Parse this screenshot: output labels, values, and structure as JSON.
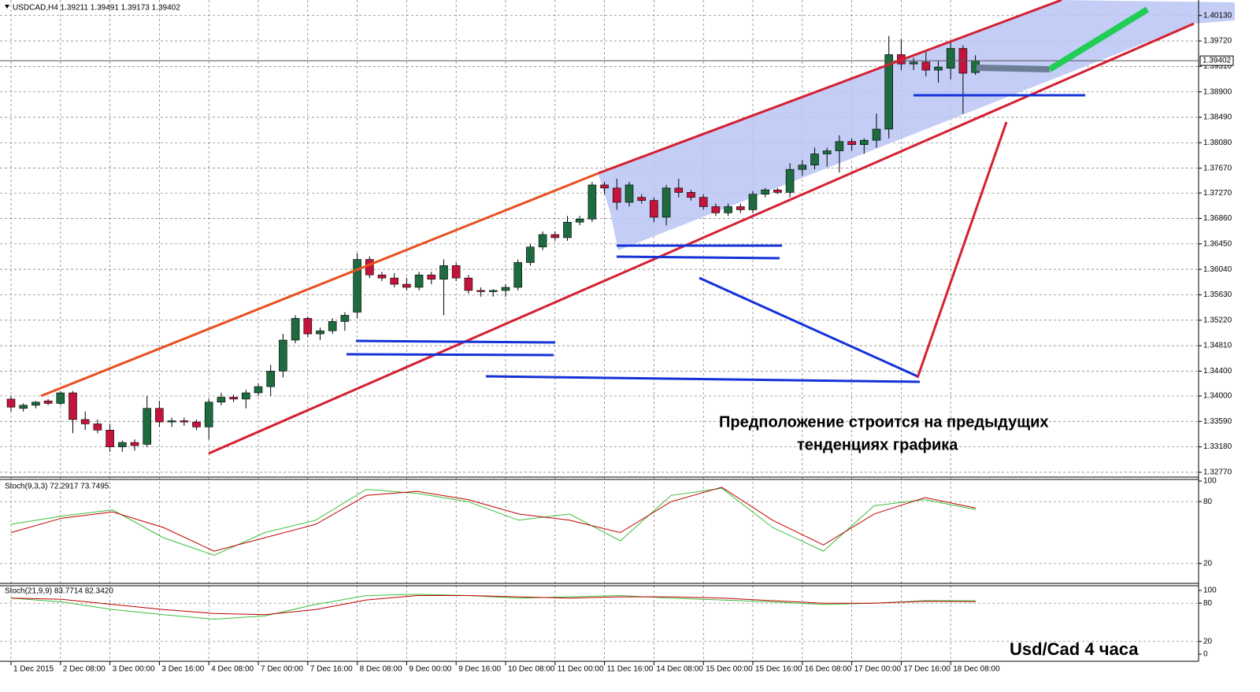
{
  "chart_data": [
    {
      "type": "candlestick",
      "title": "USDCAD,H4  1.39211 1.39491 1.39173 1.39402",
      "categories": [
        "1 Dec 2015",
        null,
        null,
        null,
        "2 Dec 08:00",
        null,
        null,
        null,
        "3 Dec 00:00",
        null,
        null,
        null,
        "3 Dec 16:00",
        null,
        null,
        null,
        "4 Dec 08:00",
        null,
        null,
        null,
        "7 Dec 00:00",
        null,
        null,
        null,
        "7 Dec 16:00",
        null,
        null,
        null,
        "8 Dec 08:00",
        null,
        null,
        null,
        "9 Dec 00:00",
        null,
        null,
        null,
        "9 Dec 16:00",
        null,
        null,
        null,
        "10 Dec 08:00",
        null,
        null,
        null,
        "11 Dec 00:00",
        null,
        null,
        null,
        "11 Dec 16:00",
        null,
        null,
        null,
        "14 Dec 08:00",
        null,
        null,
        null,
        "15 Dec 00:00",
        null,
        null,
        null,
        "15 Dec 16:00",
        null,
        null,
        null,
        "16 Dec 08:00",
        null,
        null,
        null,
        "17 Dec 00:00",
        null,
        null,
        null,
        "17 Dec 16:00",
        null,
        null,
        null,
        "18 Dec 08:00",
        null,
        null
      ],
      "open": [
        1.3395,
        1.338,
        1.3385,
        1.3392,
        1.3388,
        1.3405,
        1.3362,
        1.3355,
        1.3345,
        1.3318,
        1.3325,
        1.3322,
        1.338,
        1.3358,
        1.336,
        1.3358,
        1.335,
        1.339,
        1.3398,
        1.3395,
        1.3405,
        1.3415,
        1.344,
        1.349,
        1.3525,
        1.35,
        1.3505,
        1.352,
        1.3535,
        1.362,
        1.3595,
        1.359,
        1.358,
        1.3575,
        1.3595,
        1.3588,
        1.361,
        1.359,
        1.357,
        1.3568,
        1.357,
        1.3575,
        1.3615,
        1.364,
        1.366,
        1.3655,
        1.368,
        1.3685,
        1.374,
        1.3735,
        1.3712,
        1.372,
        1.3715,
        1.3688,
        1.3735,
        1.3728,
        1.372,
        1.3705,
        1.3695,
        1.3705,
        1.37,
        1.3725,
        1.3732,
        1.3728,
        1.3765,
        1.3772,
        1.379,
        1.3795,
        1.381,
        1.3805,
        1.3812,
        1.383,
        1.395,
        1.3935,
        1.3938,
        1.3925,
        1.3928,
        1.396,
        1.39211
      ],
      "high": [
        1.34,
        1.3388,
        1.3392,
        1.3395,
        1.3408,
        1.3408,
        1.3375,
        1.3362,
        1.3355,
        1.3328,
        1.333,
        1.34,
        1.3392,
        1.3365,
        1.3365,
        1.3362,
        1.3395,
        1.3405,
        1.3402,
        1.341,
        1.342,
        1.345,
        1.35,
        1.353,
        1.3528,
        1.351,
        1.3525,
        1.3535,
        1.363,
        1.3625,
        1.36,
        1.3598,
        1.359,
        1.36,
        1.36,
        1.362,
        1.3615,
        1.3595,
        1.3575,
        1.3572,
        1.358,
        1.362,
        1.3645,
        1.3665,
        1.3665,
        1.369,
        1.369,
        1.3745,
        1.3745,
        1.375,
        1.3745,
        1.3725,
        1.372,
        1.374,
        1.375,
        1.3732,
        1.3725,
        1.371,
        1.371,
        1.371,
        1.373,
        1.3735,
        1.3735,
        1.3775,
        1.378,
        1.38,
        1.38,
        1.382,
        1.3815,
        1.3815,
        1.3855,
        1.398,
        1.3975,
        1.3945,
        1.3955,
        1.394,
        1.397,
        1.3965,
        1.39491
      ],
      "low": [
        1.3375,
        1.3375,
        1.338,
        1.3385,
        1.3385,
        1.334,
        1.3345,
        1.334,
        1.331,
        1.331,
        1.3312,
        1.3318,
        1.335,
        1.335,
        1.3352,
        1.3345,
        1.333,
        1.3385,
        1.339,
        1.338,
        1.34,
        1.34,
        1.343,
        1.3485,
        1.3495,
        1.349,
        1.35,
        1.3505,
        1.3525,
        1.359,
        1.3585,
        1.3575,
        1.357,
        1.357,
        1.358,
        1.353,
        1.3585,
        1.3565,
        1.356,
        1.356,
        1.356,
        1.357,
        1.361,
        1.3635,
        1.365,
        1.365,
        1.3675,
        1.368,
        1.3725,
        1.37,
        1.3705,
        1.371,
        1.368,
        1.3675,
        1.372,
        1.3715,
        1.37,
        1.369,
        1.369,
        1.3695,
        1.3695,
        1.372,
        1.3725,
        1.372,
        1.3755,
        1.3765,
        1.377,
        1.376,
        1.3795,
        1.379,
        1.38,
        1.3815,
        1.3925,
        1.3925,
        1.3915,
        1.3905,
        1.391,
        1.3855,
        1.39173
      ],
      "close": [
        1.3382,
        1.3385,
        1.339,
        1.3388,
        1.3405,
        1.3362,
        1.3355,
        1.3345,
        1.3318,
        1.3325,
        1.332,
        1.338,
        1.3358,
        1.336,
        1.3358,
        1.335,
        1.339,
        1.3398,
        1.3395,
        1.3405,
        1.3415,
        1.344,
        1.349,
        1.3525,
        1.35,
        1.3505,
        1.352,
        1.353,
        1.362,
        1.3595,
        1.359,
        1.358,
        1.3575,
        1.3595,
        1.3588,
        1.361,
        1.359,
        1.357,
        1.3568,
        1.357,
        1.3575,
        1.3615,
        1.364,
        1.366,
        1.3655,
        1.368,
        1.3685,
        1.374,
        1.3735,
        1.3712,
        1.374,
        1.3715,
        1.3688,
        1.3735,
        1.3728,
        1.372,
        1.3705,
        1.3695,
        1.3705,
        1.37,
        1.3725,
        1.3732,
        1.3728,
        1.3765,
        1.3772,
        1.379,
        1.3795,
        1.381,
        1.3805,
        1.3812,
        1.383,
        1.395,
        1.3935,
        1.3938,
        1.3925,
        1.393,
        1.396,
        1.392,
        1.39402
      ],
      "up_color": "#1d6b3f",
      "down_color": "#c4143c",
      "ylim": [
        1.3268,
        1.4038
      ],
      "yticks": [
        {
          "value": 1.4013,
          "label": "1.40130"
        },
        {
          "value": 1.3972,
          "label": "1.39720"
        },
        {
          "value": 1.3931,
          "label": "1.39310"
        },
        {
          "value": 1.389,
          "label": "1.38900"
        },
        {
          "value": 1.3849,
          "label": "1.38490"
        },
        {
          "value": 1.3808,
          "label": "1.38080"
        },
        {
          "value": 1.3767,
          "label": "1.37670"
        },
        {
          "value": 1.3727,
          "label": "1.37270"
        },
        {
          "value": 1.3686,
          "label": "1.36860"
        },
        {
          "value": 1.3645,
          "label": "1.36450"
        },
        {
          "value": 1.3604,
          "label": "1.36040"
        },
        {
          "value": 1.3563,
          "label": "1.35630"
        },
        {
          "value": 1.3522,
          "label": "1.35220"
        },
        {
          "value": 1.3481,
          "label": "1.34810"
        },
        {
          "value": 1.344,
          "label": "1.34400"
        },
        {
          "value": 1.34,
          "label": "1.34000"
        },
        {
          "value": 1.3359,
          "label": "1.33590"
        },
        {
          "value": 1.3318,
          "label": "1.33180"
        },
        {
          "value": 1.3277,
          "label": "1.32770"
        }
      ],
      "price_marker": {
        "value": 1.39402,
        "label": "1.39402"
      },
      "grid": true,
      "annotations": [
        "Предположение строится на предыдущих",
        "тенденциях графика",
        "Usd/Cad 4 часа"
      ]
    },
    {
      "type": "line",
      "title": "Stoch(9,3,3) 72.2917 73.7495",
      "series": [
        {
          "color": "#3cbf3c",
          "values": [
            58,
            66,
            72,
            45,
            28,
            50,
            62,
            92,
            88,
            80,
            62,
            68,
            42,
            86,
            93,
            55,
            32,
            76,
            82,
            72.2917
          ]
        },
        {
          "color": "#c00000",
          "values": [
            50,
            64,
            70,
            55,
            32,
            45,
            58,
            86,
            90,
            82,
            68,
            62,
            50,
            80,
            94,
            62,
            38,
            68,
            84,
            73.7495
          ]
        }
      ],
      "ylim": [
        0,
        100
      ],
      "yticks": [
        100,
        80,
        20
      ],
      "grid": true
    },
    {
      "type": "line",
      "title": "Stoch(21,9,9) 83.7714 82.3420",
      "series": [
        {
          "color": "#3cbf3c",
          "values": [
            88,
            82,
            70,
            62,
            55,
            60,
            78,
            92,
            94,
            92,
            88,
            90,
            92,
            88,
            85,
            82,
            78,
            80,
            84,
            83.7714
          ]
        },
        {
          "color": "#c00000",
          "values": [
            88,
            86,
            78,
            70,
            64,
            62,
            70,
            85,
            92,
            92,
            90,
            88,
            90,
            90,
            88,
            84,
            80,
            80,
            83,
            82.342
          ]
        }
      ],
      "ylim": [
        0,
        100
      ],
      "yticks": [
        100,
        80,
        20,
        0
      ],
      "grid": true
    }
  ]
}
